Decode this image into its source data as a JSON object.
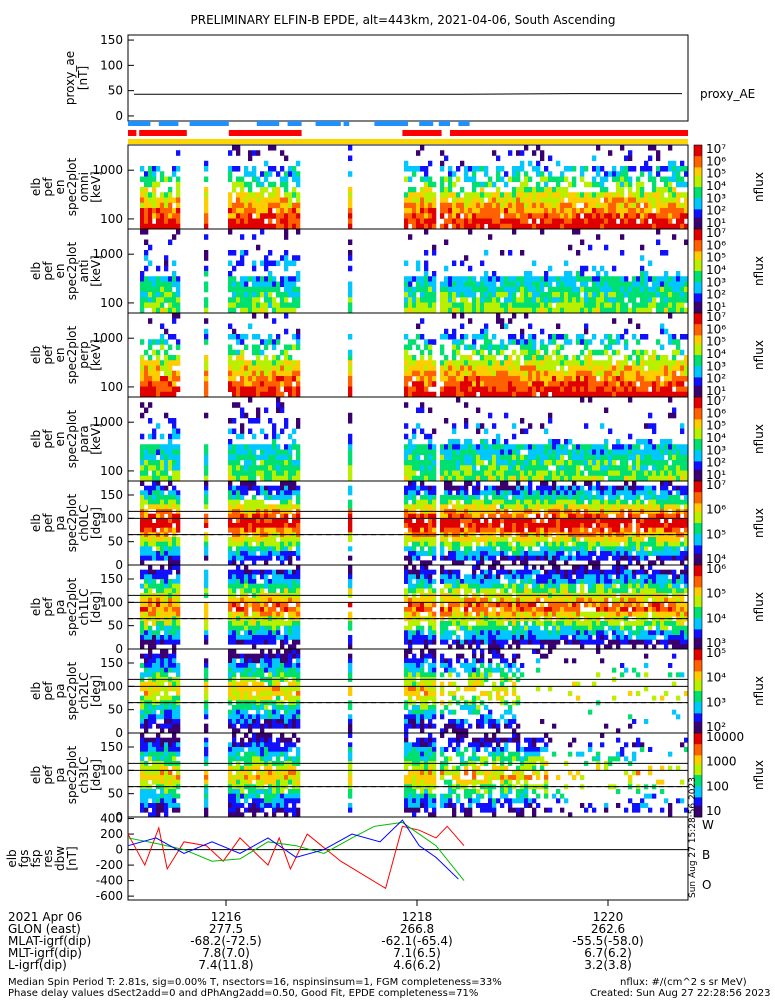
{
  "title": "PRELIMINARY ELFIN-B EPDE, alt=443km, 2021-04-06, South Ascending",
  "chart_data": [
    {
      "id": "proxy_ae",
      "type": "line",
      "ylabel": [
        "proxy_ae",
        "[nT]"
      ],
      "yticks": [
        "150",
        "100",
        "50",
        "0"
      ],
      "ylim": [
        -10,
        160
      ],
      "series": [
        {
          "name": "proxy_AE",
          "values": [
            43,
            43,
            43,
            43,
            44,
            44
          ]
        }
      ]
    },
    {
      "id": "omni",
      "type": "heatmap",
      "ylabel": [
        "elb",
        "pef",
        "en",
        "spec2plot",
        "omni",
        "[keV]"
      ],
      "yticks": [
        "1000",
        "100"
      ],
      "colorbar": {
        "label": "nflux",
        "ticks": [
          "10⁷",
          "10⁶",
          "10⁵",
          "10⁴",
          "10³",
          "10²",
          "10¹"
        ]
      }
    },
    {
      "id": "anti",
      "type": "heatmap",
      "ylabel": [
        "elb",
        "pef",
        "en",
        "spec2plot",
        "anti",
        "[keV]"
      ],
      "yticks": [
        "1000",
        "100"
      ],
      "colorbar": {
        "label": "nflux",
        "ticks": [
          "10⁷",
          "10⁶",
          "10⁵",
          "10⁴",
          "10³",
          "10²",
          "10¹"
        ]
      }
    },
    {
      "id": "perp",
      "type": "heatmap",
      "ylabel": [
        "elb",
        "pef",
        "en",
        "spec2plot",
        "perp",
        "[keV]"
      ],
      "yticks": [
        "1000",
        "100"
      ],
      "colorbar": {
        "label": "nflux",
        "ticks": [
          "10⁷",
          "10⁶",
          "10⁵",
          "10⁴",
          "10³",
          "10²",
          "10¹"
        ]
      }
    },
    {
      "id": "para",
      "type": "heatmap",
      "ylabel": [
        "elb",
        "pef",
        "en",
        "spec2plot",
        "para",
        "[keV]"
      ],
      "yticks": [
        "1000",
        "100"
      ],
      "colorbar": {
        "label": "nflux",
        "ticks": [
          "10⁷",
          "10⁶",
          "10⁵",
          "10⁴",
          "10³",
          "10²",
          "10¹"
        ]
      }
    },
    {
      "id": "ch0LC",
      "type": "heatmap",
      "ylabel": [
        "elb",
        "pef",
        "pa",
        "spec2plot",
        "ch0LC",
        "[deg]"
      ],
      "yticks": [
        "150",
        "100",
        "50",
        "0"
      ],
      "ylim": [
        0,
        180
      ],
      "colorbar": {
        "label": "nflux",
        "ticks": [
          "10⁷",
          "10⁶",
          "10⁵",
          "10⁴"
        ]
      }
    },
    {
      "id": "ch1LC",
      "type": "heatmap",
      "ylabel": [
        "elb",
        "pef",
        "pa",
        "spec2plot",
        "ch1LC",
        "[deg]"
      ],
      "yticks": [
        "150",
        "100",
        "50",
        "0"
      ],
      "ylim": [
        0,
        180
      ],
      "colorbar": {
        "label": "nflux",
        "ticks": [
          "10⁶",
          "10⁵",
          "10⁴",
          "10³"
        ]
      }
    },
    {
      "id": "ch2LC",
      "type": "heatmap",
      "ylabel": [
        "elb",
        "pef",
        "pa",
        "spec2plot",
        "ch2LC",
        "[deg]"
      ],
      "yticks": [
        "150",
        "100",
        "50",
        "0"
      ],
      "ylim": [
        0,
        180
      ],
      "colorbar": {
        "label": "nflux",
        "ticks": [
          "10⁵",
          "10⁴",
          "10³",
          "10²"
        ]
      }
    },
    {
      "id": "ch3LC",
      "type": "heatmap",
      "ylabel": [
        "elb",
        "pef",
        "pa",
        "spec2plot",
        "ch3LC",
        "[deg]"
      ],
      "yticks": [
        "150",
        "100",
        "50",
        "0"
      ],
      "ylim": [
        0,
        180
      ],
      "colorbar": {
        "label": "nflux",
        "ticks": [
          "10000",
          "1000",
          "100",
          "10"
        ]
      }
    },
    {
      "id": "dbw",
      "type": "line",
      "ylabel": [
        "elb",
        "fgs",
        "fsp",
        "res",
        "dbw",
        "[nT]"
      ],
      "yticks": [
        "400",
        "200",
        "0",
        "-200",
        "-400",
        "-600"
      ],
      "ylim": [
        -650,
        420
      ],
      "legend": [
        "W",
        "B",
        "O"
      ],
      "series": [
        {
          "name": "W",
          "color": "#ff0000",
          "x": [
            0,
            0.03,
            0.055,
            0.07,
            0.1,
            0.14,
            0.17,
            0.2,
            0.25,
            0.27,
            0.29,
            0.32,
            0.38,
            0.46,
            0.49,
            0.52,
            0.55,
            0.57,
            0.6
          ],
          "values": [
            200,
            -200,
            280,
            -250,
            100,
            50,
            -150,
            150,
            -200,
            150,
            -250,
            200,
            -150,
            -500,
            300,
            250,
            150,
            300,
            50
          ]
        },
        {
          "name": "B",
          "color": "#00bb00",
          "x": [
            0,
            0.05,
            0.1,
            0.15,
            0.2,
            0.25,
            0.3,
            0.35,
            0.4,
            0.44,
            0.49,
            0.52,
            0.55,
            0.6
          ],
          "values": [
            150,
            80,
            0,
            -150,
            -120,
            100,
            50,
            -50,
            150,
            300,
            350,
            200,
            50,
            -400
          ]
        },
        {
          "name": "O",
          "color": "#0000ff",
          "x": [
            0,
            0.05,
            0.1,
            0.15,
            0.2,
            0.25,
            0.3,
            0.35,
            0.4,
            0.45,
            0.49,
            0.52,
            0.55,
            0.59
          ],
          "values": [
            50,
            150,
            -50,
            100,
            -50,
            150,
            -100,
            0,
            200,
            100,
            380,
            50,
            -100,
            -380
          ]
        }
      ],
      "side_text": "Sun Aug 27 15:28:56 2023"
    }
  ],
  "time_axis": {
    "ticks": [
      "1216",
      "1218",
      "1220"
    ],
    "date": "2021 Apr 06",
    "rows": [
      {
        "label": "GLON (east)",
        "values": [
          "277.5",
          "266.8",
          "262.6"
        ]
      },
      {
        "label": "MLAT-igrf(dip)",
        "values": [
          "-68.2(-72.5)",
          "-62.1(-65.4)",
          "-55.5(-58.0)"
        ]
      },
      {
        "label": "MLT-igrf(dip)",
        "values": [
          "7.8(7.0)",
          "7.1(6.5)",
          "6.7(6.2)"
        ]
      },
      {
        "label": "L-igrf(dip)",
        "values": [
          "7.4(11.8)",
          "4.6(6.2)",
          "3.2(3.8)"
        ]
      }
    ]
  },
  "footer": {
    "line1": "Median Spin Period T: 2.81s, sig=0.00% T, nsectors=16, nspinsinsum=1, FGM completeness=33%",
    "line2": "Phase delay values dSect2add=0 and dPhAng2add=0.50, Good Fit, EPDE completeness=71%",
    "units": "nflux: #/(cm^2 s sr MeV)",
    "created": "Created: Sun Aug 27 22:28:56 2023"
  },
  "colors": {
    "red_bar": "#ff0000",
    "blue_bar": "#1e90ff",
    "yellow_bar": "#ffd700"
  }
}
